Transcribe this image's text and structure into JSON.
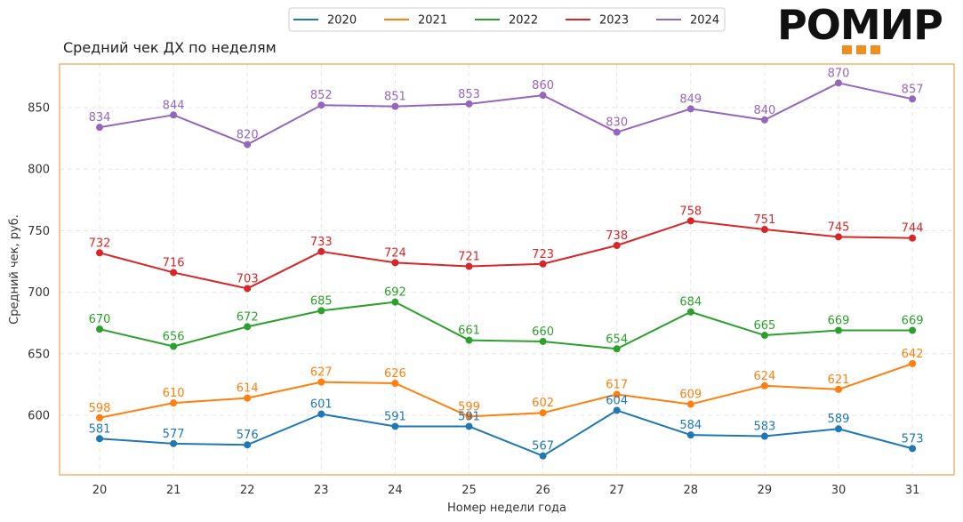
{
  "chart_data": {
    "type": "line",
    "title": "Средний чек ДХ по неделям",
    "xlabel": "Номер недели года",
    "ylabel": "Средний чек, руб.",
    "x": [
      20,
      21,
      22,
      23,
      24,
      25,
      26,
      27,
      28,
      29,
      30,
      31
    ],
    "ylim": [
      550,
      885
    ],
    "yticks": [
      600,
      650,
      700,
      750,
      800,
      850
    ],
    "grid": true,
    "legend_position": "top-center",
    "series": [
      {
        "name": "2020",
        "color": "#1f77b4",
        "values": [
          581,
          577,
          576,
          601,
          591,
          591,
          567,
          604,
          584,
          583,
          589,
          573
        ]
      },
      {
        "name": "2021",
        "color": "#ff7f0e",
        "values": [
          598,
          610,
          614,
          627,
          626,
          599,
          602,
          617,
          609,
          624,
          621,
          642
        ]
      },
      {
        "name": "2022",
        "color": "#2ca02c",
        "values": [
          670,
          656,
          672,
          685,
          692,
          661,
          660,
          654,
          684,
          665,
          669,
          669
        ]
      },
      {
        "name": "2023",
        "color": "#d62728",
        "values": [
          732,
          716,
          703,
          733,
          724,
          721,
          723,
          738,
          758,
          751,
          745,
          744
        ]
      },
      {
        "name": "2024",
        "color": "#9467bd",
        "values": [
          834,
          844,
          820,
          852,
          851,
          853,
          860,
          830,
          849,
          840,
          870,
          857
        ]
      }
    ]
  },
  "logo": {
    "text": "РОМИР",
    "accent_color": "#f28c1a"
  },
  "frame_color": "#e8902a"
}
